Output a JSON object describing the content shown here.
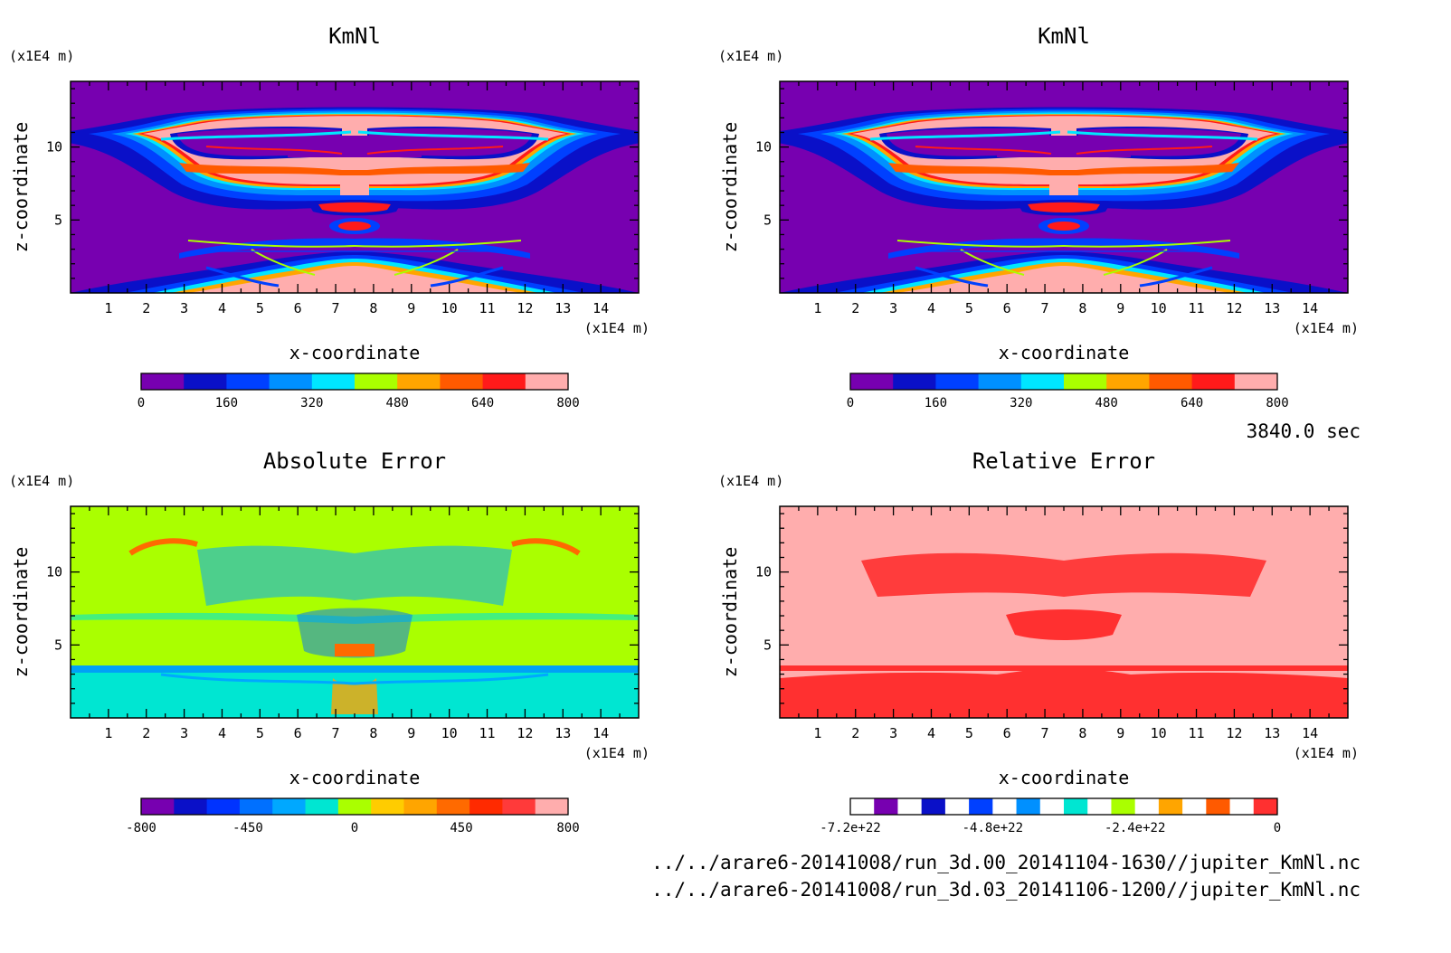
{
  "time_label": "3840.0 sec",
  "files": [
    "../../arare6-20141008/run_3d.00_20141104-1630//jupiter_KmNl.nc",
    "../../arare6-20141008/run_3d.03_20141106-1200//jupiter_KmNl.nc"
  ],
  "chart_data": [
    {
      "type": "heatmap",
      "title": "KmNl",
      "xlabel": "x-coordinate",
      "ylabel": "z-coordinate",
      "x_unit": "(x1E4 m)",
      "z_unit": "(x1E4 m)",
      "xlim": [
        0,
        15
      ],
      "zlim": [
        0,
        14.5
      ],
      "x_ticks": [
        "1",
        "2",
        "3",
        "4",
        "5",
        "6",
        "7",
        "8",
        "9",
        "10",
        "11",
        "12",
        "13",
        "14"
      ],
      "z_ticks": [
        "5",
        "10"
      ],
      "colorbar": {
        "colors": [
          "#7700b0",
          "#0a10c8",
          "#0040ff",
          "#0090ff",
          "#00e6ff",
          "#aaff00",
          "#ffa500",
          "#ff5a00",
          "#ff1a1a",
          "#ffadad"
        ],
        "tick_labels": [
          "0",
          "160",
          "320",
          "480",
          "640",
          "800"
        ]
      }
    },
    {
      "type": "heatmap",
      "title": "KmNl",
      "xlabel": "x-coordinate",
      "ylabel": "z-coordinate",
      "x_unit": "(x1E4 m)",
      "z_unit": "(x1E4 m)",
      "xlim": [
        0,
        15
      ],
      "zlim": [
        0,
        14.5
      ],
      "x_ticks": [
        "1",
        "2",
        "3",
        "4",
        "5",
        "6",
        "7",
        "8",
        "9",
        "10",
        "11",
        "12",
        "13",
        "14"
      ],
      "z_ticks": [
        "5",
        "10"
      ],
      "colorbar": {
        "colors": [
          "#7700b0",
          "#0a10c8",
          "#0040ff",
          "#0090ff",
          "#00e6ff",
          "#aaff00",
          "#ffa500",
          "#ff5a00",
          "#ff1a1a",
          "#ffadad"
        ],
        "tick_labels": [
          "0",
          "160",
          "320",
          "480",
          "640",
          "800"
        ]
      }
    },
    {
      "type": "heatmap",
      "title": "Absolute Error",
      "xlabel": "x-coordinate",
      "ylabel": "z-coordinate",
      "x_unit": "(x1E4 m)",
      "z_unit": "(x1E4 m)",
      "xlim": [
        0,
        15
      ],
      "zlim": [
        0,
        14.5
      ],
      "x_ticks": [
        "1",
        "2",
        "3",
        "4",
        "5",
        "6",
        "7",
        "8",
        "9",
        "10",
        "11",
        "12",
        "13",
        "14"
      ],
      "z_ticks": [
        "5",
        "10"
      ],
      "colorbar": {
        "colors": [
          "#7700b0",
          "#0a10c8",
          "#0033ff",
          "#0070ff",
          "#00a8ff",
          "#00e6d2",
          "#aaff00",
          "#ffcc00",
          "#ffa500",
          "#ff6a00",
          "#ff2a00",
          "#ff3a3a",
          "#ffadad"
        ],
        "tick_labels": [
          "-800",
          "-450",
          "0",
          "450",
          "800"
        ]
      }
    },
    {
      "type": "heatmap",
      "title": "Relative Error",
      "xlabel": "x-coordinate",
      "ylabel": "z-coordinate",
      "x_unit": "(x1E4 m)",
      "z_unit": "(x1E4 m)",
      "xlim": [
        0,
        15
      ],
      "zlim": [
        0,
        14.5
      ],
      "x_ticks": [
        "1",
        "2",
        "3",
        "4",
        "5",
        "6",
        "7",
        "8",
        "9",
        "10",
        "11",
        "12",
        "13",
        "14"
      ],
      "z_ticks": [
        "5",
        "10"
      ],
      "colorbar": {
        "colors": [
          "#ffffff",
          "#7700b0",
          "#ffffff",
          "#0a10c8",
          "#ffffff",
          "#0040ff",
          "#ffffff",
          "#0090ff",
          "#ffffff",
          "#00e6d2",
          "#ffffff",
          "#aaff00",
          "#ffffff",
          "#ffa500",
          "#ffffff",
          "#ff5a00",
          "#ffffff",
          "#ff3030"
        ],
        "tick_labels": [
          "-7.2e+22",
          "-4.8e+22",
          "-2.4e+22",
          "0"
        ]
      }
    }
  ]
}
